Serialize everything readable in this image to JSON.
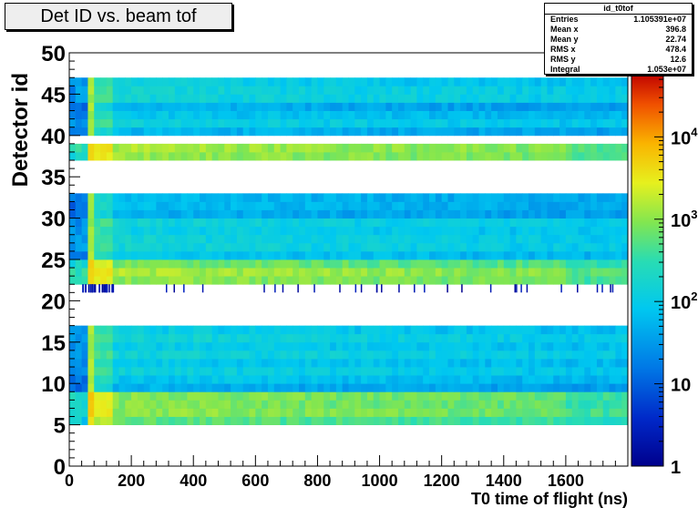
{
  "chart_data": {
    "type": "heatmap",
    "title": "Det ID vs. beam tof",
    "xlabel": "T0 time of flight (ns)",
    "ylabel": "Detector id",
    "xlim": [
      0,
      1800
    ],
    "ylim": [
      0,
      50
    ],
    "x_ticks": [
      "0",
      "200",
      "400",
      "600",
      "800",
      "1000",
      "1200",
      "1400",
      "1600"
    ],
    "y_ticks": [
      "0",
      "5",
      "10",
      "15",
      "20",
      "25",
      "30",
      "35",
      "40",
      "45",
      "50"
    ],
    "z_scale": "log",
    "z_range": [
      1,
      60000
    ],
    "colorbar_ticks": [
      {
        "label": "1",
        "value": 1
      },
      {
        "label": "10",
        "value": 10
      },
      {
        "label": "10",
        "sup": "2",
        "value": 100
      },
      {
        "label": "10",
        "sup": "3",
        "value": 1000
      },
      {
        "label": "10",
        "sup": "4",
        "value": 10000
      }
    ],
    "detector_bands": [
      {
        "from": 5,
        "to": 9,
        "level": 1000,
        "peak": 6000,
        "tail": 300
      },
      {
        "from": 9,
        "to": 17,
        "level": 100,
        "peak": 1500,
        "tail": 30
      },
      {
        "from": 22,
        "to": 25,
        "level": 1000,
        "peak": 6000,
        "tail": 300
      },
      {
        "from": 25,
        "to": 33,
        "level": 100,
        "peak": 1500,
        "tail": 30
      },
      {
        "from": 37,
        "to": 39,
        "level": 1000,
        "peak": 6000,
        "tail": 300
      },
      {
        "from": 40,
        "to": 47,
        "level": 100,
        "peak": 1500,
        "tail": 30
      }
    ],
    "sparse_row": 21.5
  },
  "stats": {
    "name": "id_t0tof",
    "rows": [
      {
        "label": "Entries",
        "value": "1.105391e+07"
      },
      {
        "label": "Mean x",
        "value": "396.8"
      },
      {
        "label": "Mean y",
        "value": "22.74"
      },
      {
        "label": "RMS x",
        "value": "478.4"
      },
      {
        "label": "RMS y",
        "value": "12.6"
      },
      {
        "label": "Integral",
        "value": "1.053e+07"
      }
    ]
  }
}
